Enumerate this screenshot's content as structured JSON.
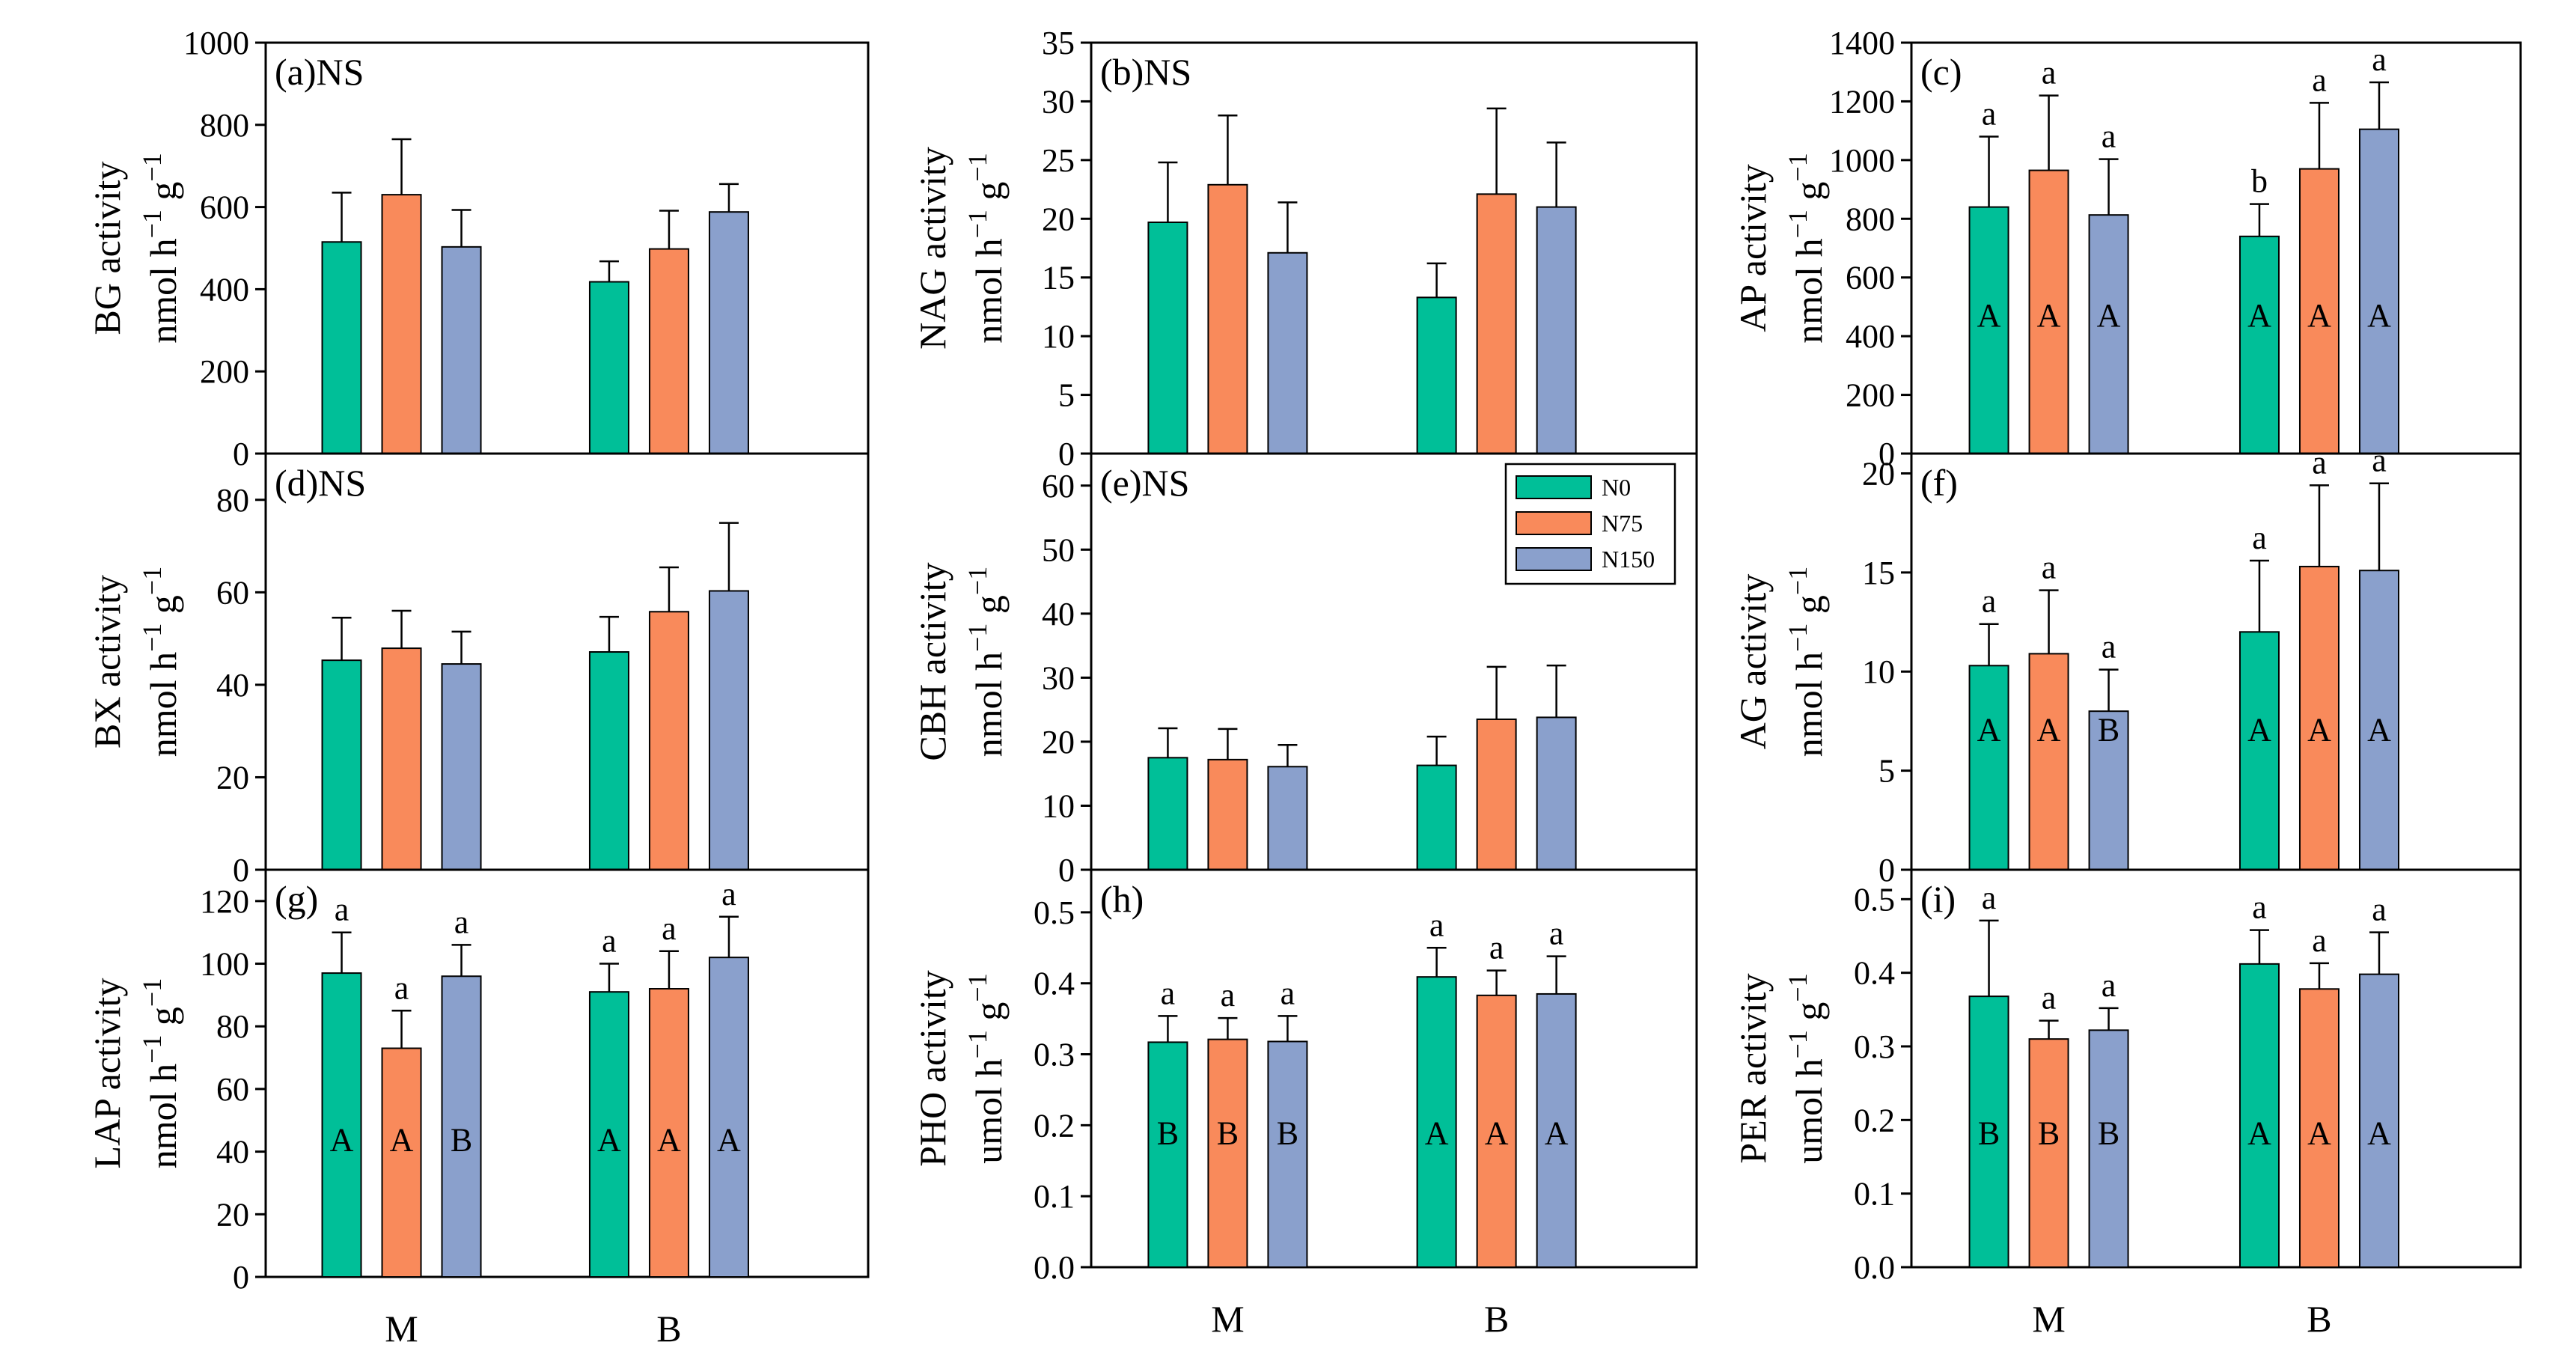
{
  "colors": {
    "N0": "#00bf98",
    "N75": "#f98a5b",
    "N150": "#8aa0cc",
    "frame": "#000000",
    "background": "#ffffff"
  },
  "legend": {
    "items": [
      "N0",
      "N75",
      "N150"
    ]
  },
  "x_categories": [
    "M",
    "B"
  ],
  "chart_data": [
    {
      "id": "a",
      "type": "bar",
      "panel_label": "(a)NS",
      "ylabel_main": "BG activity",
      "ylabel_unit": "nmol h^-1 g^-1",
      "ylim": [
        0,
        1000
      ],
      "yticks": [
        "0",
        "200",
        "400",
        "600",
        "800",
        "1000"
      ],
      "ytick_values": [
        0,
        200,
        400,
        600,
        800,
        1000
      ],
      "categories": [
        "M",
        "B"
      ],
      "show_xlabels": false,
      "series": [
        {
          "name": "N0",
          "values": [
            515,
            418
          ],
          "errors": [
            120,
            50
          ],
          "upper_letters": [
            "",
            ""
          ],
          "inner_letters": [
            "",
            ""
          ]
        },
        {
          "name": "N75",
          "values": [
            630,
            498
          ],
          "errors": [
            135,
            93
          ],
          "upper_letters": [
            "",
            ""
          ],
          "inner_letters": [
            "",
            ""
          ]
        },
        {
          "name": "N150",
          "values": [
            503,
            588
          ],
          "errors": [
            90,
            68
          ],
          "upper_letters": [
            "",
            ""
          ],
          "inner_letters": [
            "",
            ""
          ]
        }
      ]
    },
    {
      "id": "b",
      "type": "bar",
      "panel_label": "(b)NS",
      "ylabel_main": "NAG activity",
      "ylabel_unit": "nmol h^-1 g^-1",
      "ylim": [
        0,
        35
      ],
      "yticks": [
        "0",
        "5",
        "10",
        "15",
        "20",
        "25",
        "30",
        "35"
      ],
      "ytick_values": [
        0,
        5,
        10,
        15,
        20,
        25,
        30,
        35
      ],
      "categories": [
        "M",
        "B"
      ],
      "show_xlabels": false,
      "series": [
        {
          "name": "N0",
          "values": [
            19.7,
            13.3
          ],
          "errors": [
            5.1,
            2.9
          ],
          "upper_letters": [
            "",
            ""
          ],
          "inner_letters": [
            "",
            ""
          ]
        },
        {
          "name": "N75",
          "values": [
            22.9,
            22.1
          ],
          "errors": [
            5.9,
            7.3
          ],
          "upper_letters": [
            "",
            ""
          ],
          "inner_letters": [
            "",
            ""
          ]
        },
        {
          "name": "N150",
          "values": [
            17.1,
            21.0
          ],
          "errors": [
            4.3,
            5.5
          ],
          "upper_letters": [
            "",
            ""
          ],
          "inner_letters": [
            "",
            ""
          ]
        }
      ]
    },
    {
      "id": "c",
      "type": "bar",
      "panel_label": "(c)",
      "ylabel_main": "AP activity",
      "ylabel_unit": "nmol h^-1 g^-1",
      "ylim": [
        0,
        1400
      ],
      "yticks": [
        "0",
        "200",
        "400",
        "600",
        "800",
        "1000",
        "1200",
        "1400"
      ],
      "ytick_values": [
        0,
        200,
        400,
        600,
        800,
        1000,
        1200,
        1400
      ],
      "categories": [
        "M",
        "B"
      ],
      "show_xlabels": false,
      "series": [
        {
          "name": "N0",
          "values": [
            840,
            740
          ],
          "errors": [
            240,
            110
          ],
          "upper_letters": [
            "a",
            "b"
          ],
          "inner_letters": [
            "A",
            "A"
          ]
        },
        {
          "name": "N75",
          "values": [
            965,
            970
          ],
          "errors": [
            255,
            225
          ],
          "upper_letters": [
            "a",
            "a"
          ],
          "inner_letters": [
            "A",
            "A"
          ]
        },
        {
          "name": "N150",
          "values": [
            813,
            1105
          ],
          "errors": [
            190,
            160
          ],
          "upper_letters": [
            "a",
            "a"
          ],
          "inner_letters": [
            "A",
            "A"
          ]
        }
      ]
    },
    {
      "id": "d",
      "type": "bar",
      "panel_label": "(d)NS",
      "ylabel_main": "BX activity",
      "ylabel_unit": "nmol h^-1 g^-1",
      "ylim": [
        0,
        90
      ],
      "yticks": [
        "0",
        "20",
        "40",
        "60",
        "80"
      ],
      "ytick_values": [
        0,
        20,
        40,
        60,
        80
      ],
      "categories": [
        "M",
        "B"
      ],
      "show_xlabels": false,
      "series": [
        {
          "name": "N0",
          "values": [
            45.3,
            47.1
          ],
          "errors": [
            9.2,
            7.6
          ],
          "upper_letters": [
            "",
            ""
          ],
          "inner_letters": [
            "",
            ""
          ]
        },
        {
          "name": "N75",
          "values": [
            47.9,
            55.8
          ],
          "errors": [
            8.1,
            9.6
          ],
          "upper_letters": [
            "",
            ""
          ],
          "inner_letters": [
            "",
            ""
          ]
        },
        {
          "name": "N150",
          "values": [
            44.5,
            60.3
          ],
          "errors": [
            7.0,
            14.7
          ],
          "upper_letters": [
            "",
            ""
          ],
          "inner_letters": [
            "",
            ""
          ]
        }
      ]
    },
    {
      "id": "e",
      "type": "bar",
      "panel_label": "(e)NS",
      "ylabel_main": "CBH activity",
      "ylabel_unit": "nmol h^-1 g^-1",
      "ylim": [
        0,
        65
      ],
      "yticks": [
        "0",
        "10",
        "20",
        "30",
        "40",
        "50",
        "60"
      ],
      "ytick_values": [
        0,
        10,
        20,
        30,
        40,
        50,
        60
      ],
      "categories": [
        "M",
        "B"
      ],
      "show_xlabels": false,
      "show_legend": true,
      "series": [
        {
          "name": "N0",
          "values": [
            17.5,
            16.3
          ],
          "errors": [
            4.6,
            4.5
          ],
          "upper_letters": [
            "",
            ""
          ],
          "inner_letters": [
            "",
            ""
          ]
        },
        {
          "name": "N75",
          "values": [
            17.2,
            23.5
          ],
          "errors": [
            4.8,
            8.2
          ],
          "upper_letters": [
            "",
            ""
          ],
          "inner_letters": [
            "",
            ""
          ]
        },
        {
          "name": "N150",
          "values": [
            16.1,
            23.8
          ],
          "errors": [
            3.4,
            8.1
          ],
          "upper_letters": [
            "",
            ""
          ],
          "inner_letters": [
            "",
            ""
          ]
        }
      ]
    },
    {
      "id": "f",
      "type": "bar",
      "panel_label": "(f)",
      "ylabel_main": "AG activity",
      "ylabel_unit": "nmol h^-1 g^-1",
      "ylim": [
        0,
        21
      ],
      "yticks": [
        "0",
        "5",
        "10",
        "15",
        "20"
      ],
      "ytick_values": [
        0,
        5,
        10,
        15,
        20
      ],
      "categories": [
        "M",
        "B"
      ],
      "show_xlabels": false,
      "series": [
        {
          "name": "N0",
          "values": [
            10.3,
            12.0
          ],
          "errors": [
            2.1,
            3.6
          ],
          "upper_letters": [
            "a",
            "a"
          ],
          "inner_letters": [
            "A",
            "A"
          ]
        },
        {
          "name": "N75",
          "values": [
            10.9,
            15.3
          ],
          "errors": [
            3.2,
            4.1
          ],
          "upper_letters": [
            "a",
            "a"
          ],
          "inner_letters": [
            "A",
            "A"
          ]
        },
        {
          "name": "N150",
          "values": [
            8.0,
            15.1
          ],
          "errors": [
            2.1,
            4.4
          ],
          "upper_letters": [
            "a",
            "a"
          ],
          "inner_letters": [
            "B",
            "A"
          ]
        }
      ]
    },
    {
      "id": "g",
      "type": "bar",
      "panel_label": "(g)",
      "ylabel_main": "LAP activity",
      "ylabel_unit": "nmol h^-1 g^-1",
      "ylim": [
        0,
        130
      ],
      "yticks": [
        "0",
        "20",
        "40",
        "60",
        "80",
        "100",
        "120"
      ],
      "ytick_values": [
        0,
        20,
        40,
        60,
        80,
        100,
        120
      ],
      "categories": [
        "M",
        "B"
      ],
      "show_xlabels": true,
      "series": [
        {
          "name": "N0",
          "values": [
            97,
            91
          ],
          "errors": [
            13,
            9
          ],
          "upper_letters": [
            "a",
            "a"
          ],
          "inner_letters": [
            "A",
            "A"
          ]
        },
        {
          "name": "N75",
          "values": [
            73,
            92
          ],
          "errors": [
            12,
            12
          ],
          "upper_letters": [
            "a",
            "a"
          ],
          "inner_letters": [
            "A",
            "A"
          ]
        },
        {
          "name": "N150",
          "values": [
            96,
            102
          ],
          "errors": [
            10,
            13
          ],
          "upper_letters": [
            "a",
            "a"
          ],
          "inner_letters": [
            "B",
            "A"
          ]
        }
      ]
    },
    {
      "id": "h",
      "type": "bar",
      "panel_label": "(h)",
      "ylabel_main": "PHO activity",
      "ylabel_unit": "umol h^-1 g^-1",
      "ylim": [
        0,
        0.56
      ],
      "yticks": [
        "0.0",
        "0.1",
        "0.2",
        "0.3",
        "0.4",
        "0.5"
      ],
      "ytick_values": [
        0,
        0.1,
        0.2,
        0.3,
        0.4,
        0.5
      ],
      "categories": [
        "M",
        "B"
      ],
      "show_xlabels": true,
      "series": [
        {
          "name": "N0",
          "values": [
            0.317,
            0.409
          ],
          "errors": [
            0.037,
            0.041
          ],
          "upper_letters": [
            "a",
            "a"
          ],
          "inner_letters": [
            "B",
            "A"
          ]
        },
        {
          "name": "N75",
          "values": [
            0.321,
            0.383
          ],
          "errors": [
            0.03,
            0.035
          ],
          "upper_letters": [
            "a",
            "a"
          ],
          "inner_letters": [
            "B",
            "A"
          ]
        },
        {
          "name": "N150",
          "values": [
            0.318,
            0.385
          ],
          "errors": [
            0.036,
            0.053
          ],
          "upper_letters": [
            "a",
            "a"
          ],
          "inner_letters": [
            "B",
            "A"
          ]
        }
      ]
    },
    {
      "id": "i",
      "type": "bar",
      "panel_label": "(i)",
      "ylabel_main": "PER activity",
      "ylabel_unit": "umol h^-1 g^-1",
      "ylim": [
        0,
        0.54
      ],
      "yticks": [
        "0.0",
        "0.1",
        "0.2",
        "0.3",
        "0.4",
        "0.5"
      ],
      "ytick_values": [
        0,
        0.1,
        0.2,
        0.3,
        0.4,
        0.5
      ],
      "categories": [
        "M",
        "B"
      ],
      "show_xlabels": true,
      "series": [
        {
          "name": "N0",
          "values": [
            0.368,
            0.412
          ],
          "errors": [
            0.103,
            0.046
          ],
          "upper_letters": [
            "a",
            "a"
          ],
          "inner_letters": [
            "B",
            "A"
          ]
        },
        {
          "name": "N75",
          "values": [
            0.31,
            0.378
          ],
          "errors": [
            0.025,
            0.035
          ],
          "upper_letters": [
            "a",
            "a"
          ],
          "inner_letters": [
            "B",
            "A"
          ]
        },
        {
          "name": "N150",
          "values": [
            0.322,
            0.398
          ],
          "errors": [
            0.03,
            0.057
          ],
          "upper_letters": [
            "a",
            "a"
          ],
          "inner_letters": [
            "B",
            "A"
          ]
        }
      ]
    }
  ]
}
